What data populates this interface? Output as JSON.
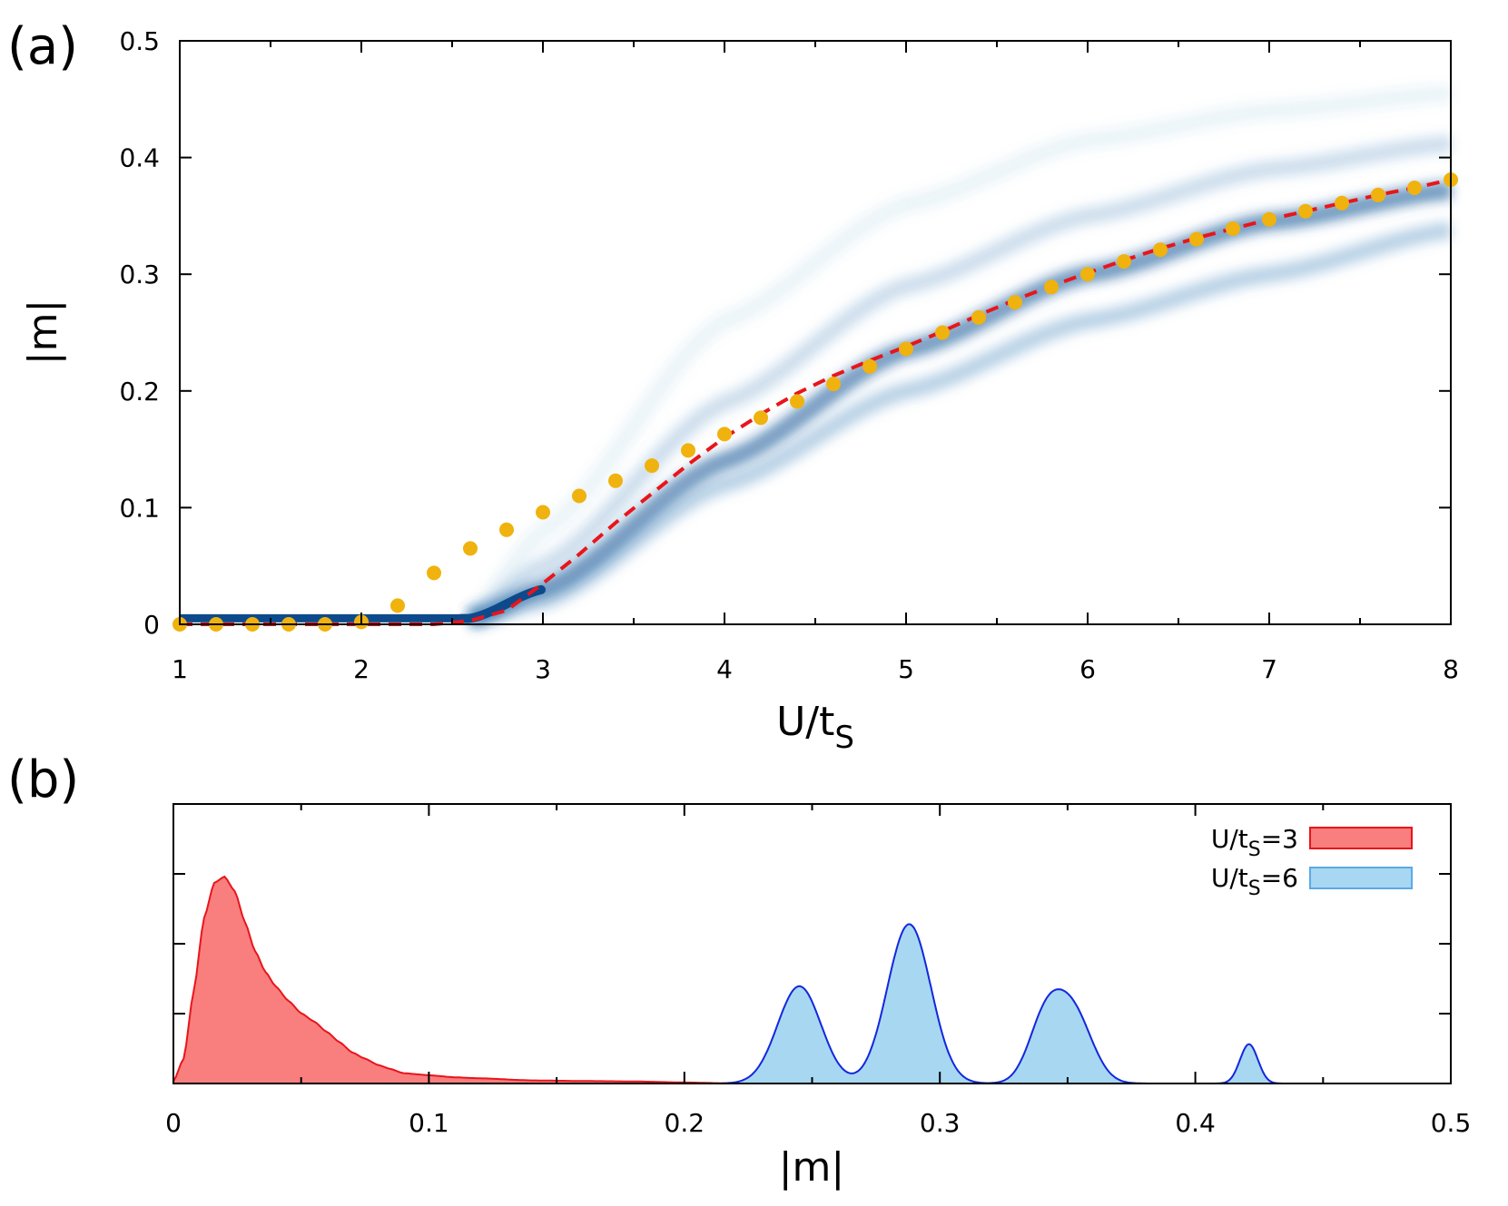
{
  "chart_data": [
    {
      "panel_label": "(a)",
      "type": "line",
      "xlabel": "U/t",
      "xlabel_sub": "S",
      "ylabel": "|m|",
      "xlim": [
        1,
        8
      ],
      "ylim": [
        0,
        0.5
      ],
      "x_ticks": [
        1,
        2,
        3,
        4,
        5,
        6,
        7,
        8
      ],
      "x_tick_labels": [
        "1",
        "2",
        "3",
        "4",
        "5",
        "6",
        "7",
        "8"
      ],
      "y_ticks": [
        0,
        0.1,
        0.2,
        0.3,
        0.4,
        0.5
      ],
      "y_tick_labels": [
        "0",
        "0.1",
        "0.2",
        "0.3",
        "0.4",
        "0.5"
      ],
      "grid": false,
      "background_heatmap": {
        "colormap": "white-to-dark-blue",
        "branches": [
          {
            "x": [
              2.6,
              3,
              4,
              5,
              6,
              7,
              8
            ],
            "y": [
              0.005,
              0.02,
              0.12,
              0.2,
              0.26,
              0.3,
              0.338
            ],
            "strength": 0.5
          },
          {
            "x": [
              2.6,
              3,
              4,
              5,
              6,
              7,
              8
            ],
            "y": [
              0.005,
              0.03,
              0.14,
              0.235,
              0.3,
              0.345,
              0.372
            ],
            "strength": 0.85
          },
          {
            "x": [
              2.6,
              3,
              4,
              5,
              6,
              7,
              8
            ],
            "y": [
              0.005,
              0.05,
              0.19,
              0.29,
              0.35,
              0.39,
              0.412
            ],
            "strength": 0.35
          },
          {
            "x": [
              2.6,
              3,
              4,
              5,
              6,
              7,
              8
            ],
            "y": [
              0.005,
              0.08,
              0.26,
              0.36,
              0.415,
              0.44,
              0.455
            ],
            "strength": 0.12
          }
        ],
        "flat_band": {
          "x": [
            1,
            2.6
          ],
          "y": 0.004
        }
      },
      "series": [
        {
          "style": "dashed-line",
          "color": "#e8151b",
          "x": [
            1,
            2.4,
            2.6,
            2.8,
            3.0,
            3.2,
            3.4,
            3.6,
            3.8,
            4.0,
            4.2,
            4.4,
            4.6,
            4.8,
            5.0,
            5.2,
            5.4,
            5.6,
            5.8,
            6.0,
            6.2,
            6.4,
            6.6,
            6.8,
            7.0,
            7.2,
            7.4,
            7.6,
            7.8,
            8.0
          ],
          "y": [
            0.0,
            0.0,
            0.003,
            0.012,
            0.035,
            0.06,
            0.087,
            0.112,
            0.137,
            0.16,
            0.18,
            0.198,
            0.213,
            0.226,
            0.238,
            0.251,
            0.265,
            0.278,
            0.29,
            0.301,
            0.312,
            0.322,
            0.331,
            0.339,
            0.347,
            0.354,
            0.361,
            0.368,
            0.374,
            0.381
          ]
        },
        {
          "style": "dots",
          "color": "#f0b20e",
          "x": [
            1.0,
            1.2,
            1.4,
            1.6,
            1.8,
            2.0,
            2.2,
            2.4,
            2.6,
            2.8,
            3.0,
            3.2,
            3.4,
            3.6,
            3.8,
            4.0,
            4.2,
            4.4,
            4.6,
            4.8,
            5.0,
            5.2,
            5.4,
            5.6,
            5.8,
            6.0,
            6.2,
            6.4,
            6.6,
            6.8,
            7.0,
            7.2,
            7.4,
            7.6,
            7.8,
            8.0
          ],
          "y": [
            0.0,
            0.0,
            0.0,
            0.0,
            0.0,
            0.002,
            0.016,
            0.044,
            0.065,
            0.081,
            0.096,
            0.11,
            0.123,
            0.136,
            0.149,
            0.163,
            0.177,
            0.191,
            0.206,
            0.221,
            0.236,
            0.25,
            0.263,
            0.276,
            0.289,
            0.3,
            0.311,
            0.321,
            0.33,
            0.339,
            0.347,
            0.354,
            0.361,
            0.368,
            0.374,
            0.381
          ]
        }
      ]
    },
    {
      "panel_label": "(b)",
      "type": "area",
      "xlabel": "|m|",
      "xlim": [
        0,
        0.5
      ],
      "x_ticks": [
        0,
        0.1,
        0.2,
        0.3,
        0.4,
        0.5
      ],
      "x_tick_labels": [
        "0",
        "0.1",
        "0.2",
        "0.3",
        "0.4",
        "0.5"
      ],
      "y_ticks_unlabeled": 4,
      "legend_position": "top-right",
      "series": [
        {
          "name": "U/t",
          "name_sub": "S",
          "name_suffix": "=3",
          "fill": "#f97e7e",
          "stroke": "#e8151b",
          "x": [
            0,
            0.004,
            0.008,
            0.012,
            0.016,
            0.02,
            0.024,
            0.028,
            0.032,
            0.036,
            0.04,
            0.045,
            0.05,
            0.055,
            0.06,
            0.065,
            0.07,
            0.075,
            0.08,
            0.085,
            0.09,
            0.1,
            0.11,
            0.12,
            0.14,
            0.16,
            0.18,
            0.2,
            0.22
          ],
          "y": [
            0.01,
            0.12,
            0.45,
            0.8,
            0.97,
            1.0,
            0.93,
            0.78,
            0.64,
            0.54,
            0.47,
            0.4,
            0.34,
            0.3,
            0.25,
            0.2,
            0.15,
            0.12,
            0.09,
            0.07,
            0.05,
            0.04,
            0.03,
            0.025,
            0.015,
            0.012,
            0.01,
            0.005,
            0.0
          ]
        },
        {
          "name": "U/t",
          "name_sub": "S",
          "name_suffix": "=6",
          "fill": "#a8d7f1",
          "stroke": "#1227de",
          "peaks": [
            {
              "center": 0.245,
              "height": 0.47,
              "width": 0.0085
            },
            {
              "center": 0.288,
              "height": 0.77,
              "width": 0.0085
            },
            {
              "center": 0.341,
              "height": 0.28,
              "width": 0.0065
            },
            {
              "center": 0.352,
              "height": 0.34,
              "width": 0.0075
            },
            {
              "center": 0.421,
              "height": 0.19,
              "width": 0.0035
            }
          ]
        }
      ]
    }
  ]
}
